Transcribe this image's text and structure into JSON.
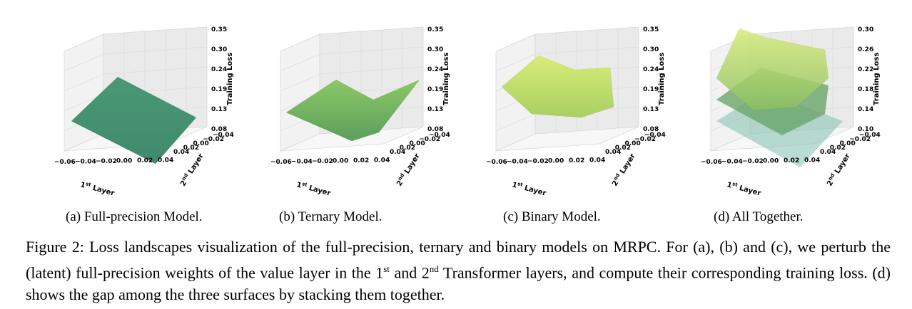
{
  "panels": [
    {
      "id": "a",
      "caption": "(a)  Full-precision Model.",
      "zlabel": "Training Loss",
      "zticks": [
        "0.08",
        "0.13",
        "0.19",
        "0.24",
        "0.30",
        "0.35"
      ],
      "xticks": [
        "−0.06",
        "−0.04",
        "−0.02",
        "0.00",
        "0.02",
        "0.04"
      ],
      "yticks": [
        "−0.04",
        "−0.02",
        "0.00",
        "0.02",
        "0.04"
      ],
      "xlabel_main": "1",
      "xlabel_sup": "st",
      "xlabel_tail": " Layer",
      "ylabel_main": "2",
      "ylabel_sup": "nd",
      "ylabel_tail": " Layer",
      "surface_color": "#3f8a6c"
    },
    {
      "id": "b",
      "caption": "(b)  Ternary Model.",
      "zlabel": "Training Loss",
      "zticks": [
        "0.08",
        "0.13",
        "0.19",
        "0.24",
        "0.30",
        "0.35"
      ],
      "xticks": [
        "−0.06",
        "−0.04",
        "−0.02",
        "0.00",
        "0.02",
        "0.04"
      ],
      "yticks": [
        "−0.04",
        "−0.02",
        "0.00",
        "0.02",
        "0.04"
      ],
      "xlabel_main": "1",
      "xlabel_sup": "st",
      "xlabel_tail": " Layer",
      "ylabel_main": "2",
      "ylabel_sup": "nd",
      "ylabel_tail": " Layer",
      "surface_color": "#5c9e5c"
    },
    {
      "id": "c",
      "caption": "(c)  Binary Model.",
      "zlabel": "Training Loss",
      "zticks": [
        "0.08",
        "0.13",
        "0.19",
        "0.24",
        "0.30",
        "0.35"
      ],
      "xticks": [
        "−0.06",
        "−0.04",
        "−0.02",
        "0.00",
        "0.02",
        "0.04"
      ],
      "yticks": [
        "−0.04",
        "−0.02",
        "0.00",
        "0.02",
        "0.04"
      ],
      "xlabel_main": "1",
      "xlabel_sup": "st",
      "xlabel_tail": " Layer",
      "ylabel_main": "2",
      "ylabel_sup": "nd",
      "ylabel_tail": " Layer",
      "surface_color": "#a9cf62"
    },
    {
      "id": "d",
      "caption": "(d)  All Together.",
      "zlabel": "Training Loss",
      "zticks": [
        "0.10",
        "0.14",
        "0.18",
        "0.22",
        "0.26",
        "0.30"
      ],
      "xticks": [
        "−0.06",
        "−0.04",
        "−0.02",
        "0.00",
        "0.02",
        "0.04"
      ],
      "yticks": [
        "−0.04",
        "−0.02",
        "0.00",
        "0.02",
        "0.04"
      ],
      "xlabel_main": "1",
      "xlabel_sup": "st",
      "xlabel_tail": " Layer",
      "ylabel_main": "2",
      "ylabel_sup": "nd",
      "ylabel_tail": " Layer",
      "surface_color": "#8cbf63"
    }
  ],
  "caption": {
    "lead": "Figure 2: Loss landscapes visualization of the full-precision, ternary and binary models on MRPC. For (a), (b) and (c), we perturb the (latent) full-precision weights of the value layer in the 1",
    "sup1": "st",
    "mid": " and 2",
    "sup2": "nd",
    "tail": " Transformer layers, and compute their corresponding training loss. (d) shows the gap among the three surfaces by stacking them together."
  }
}
